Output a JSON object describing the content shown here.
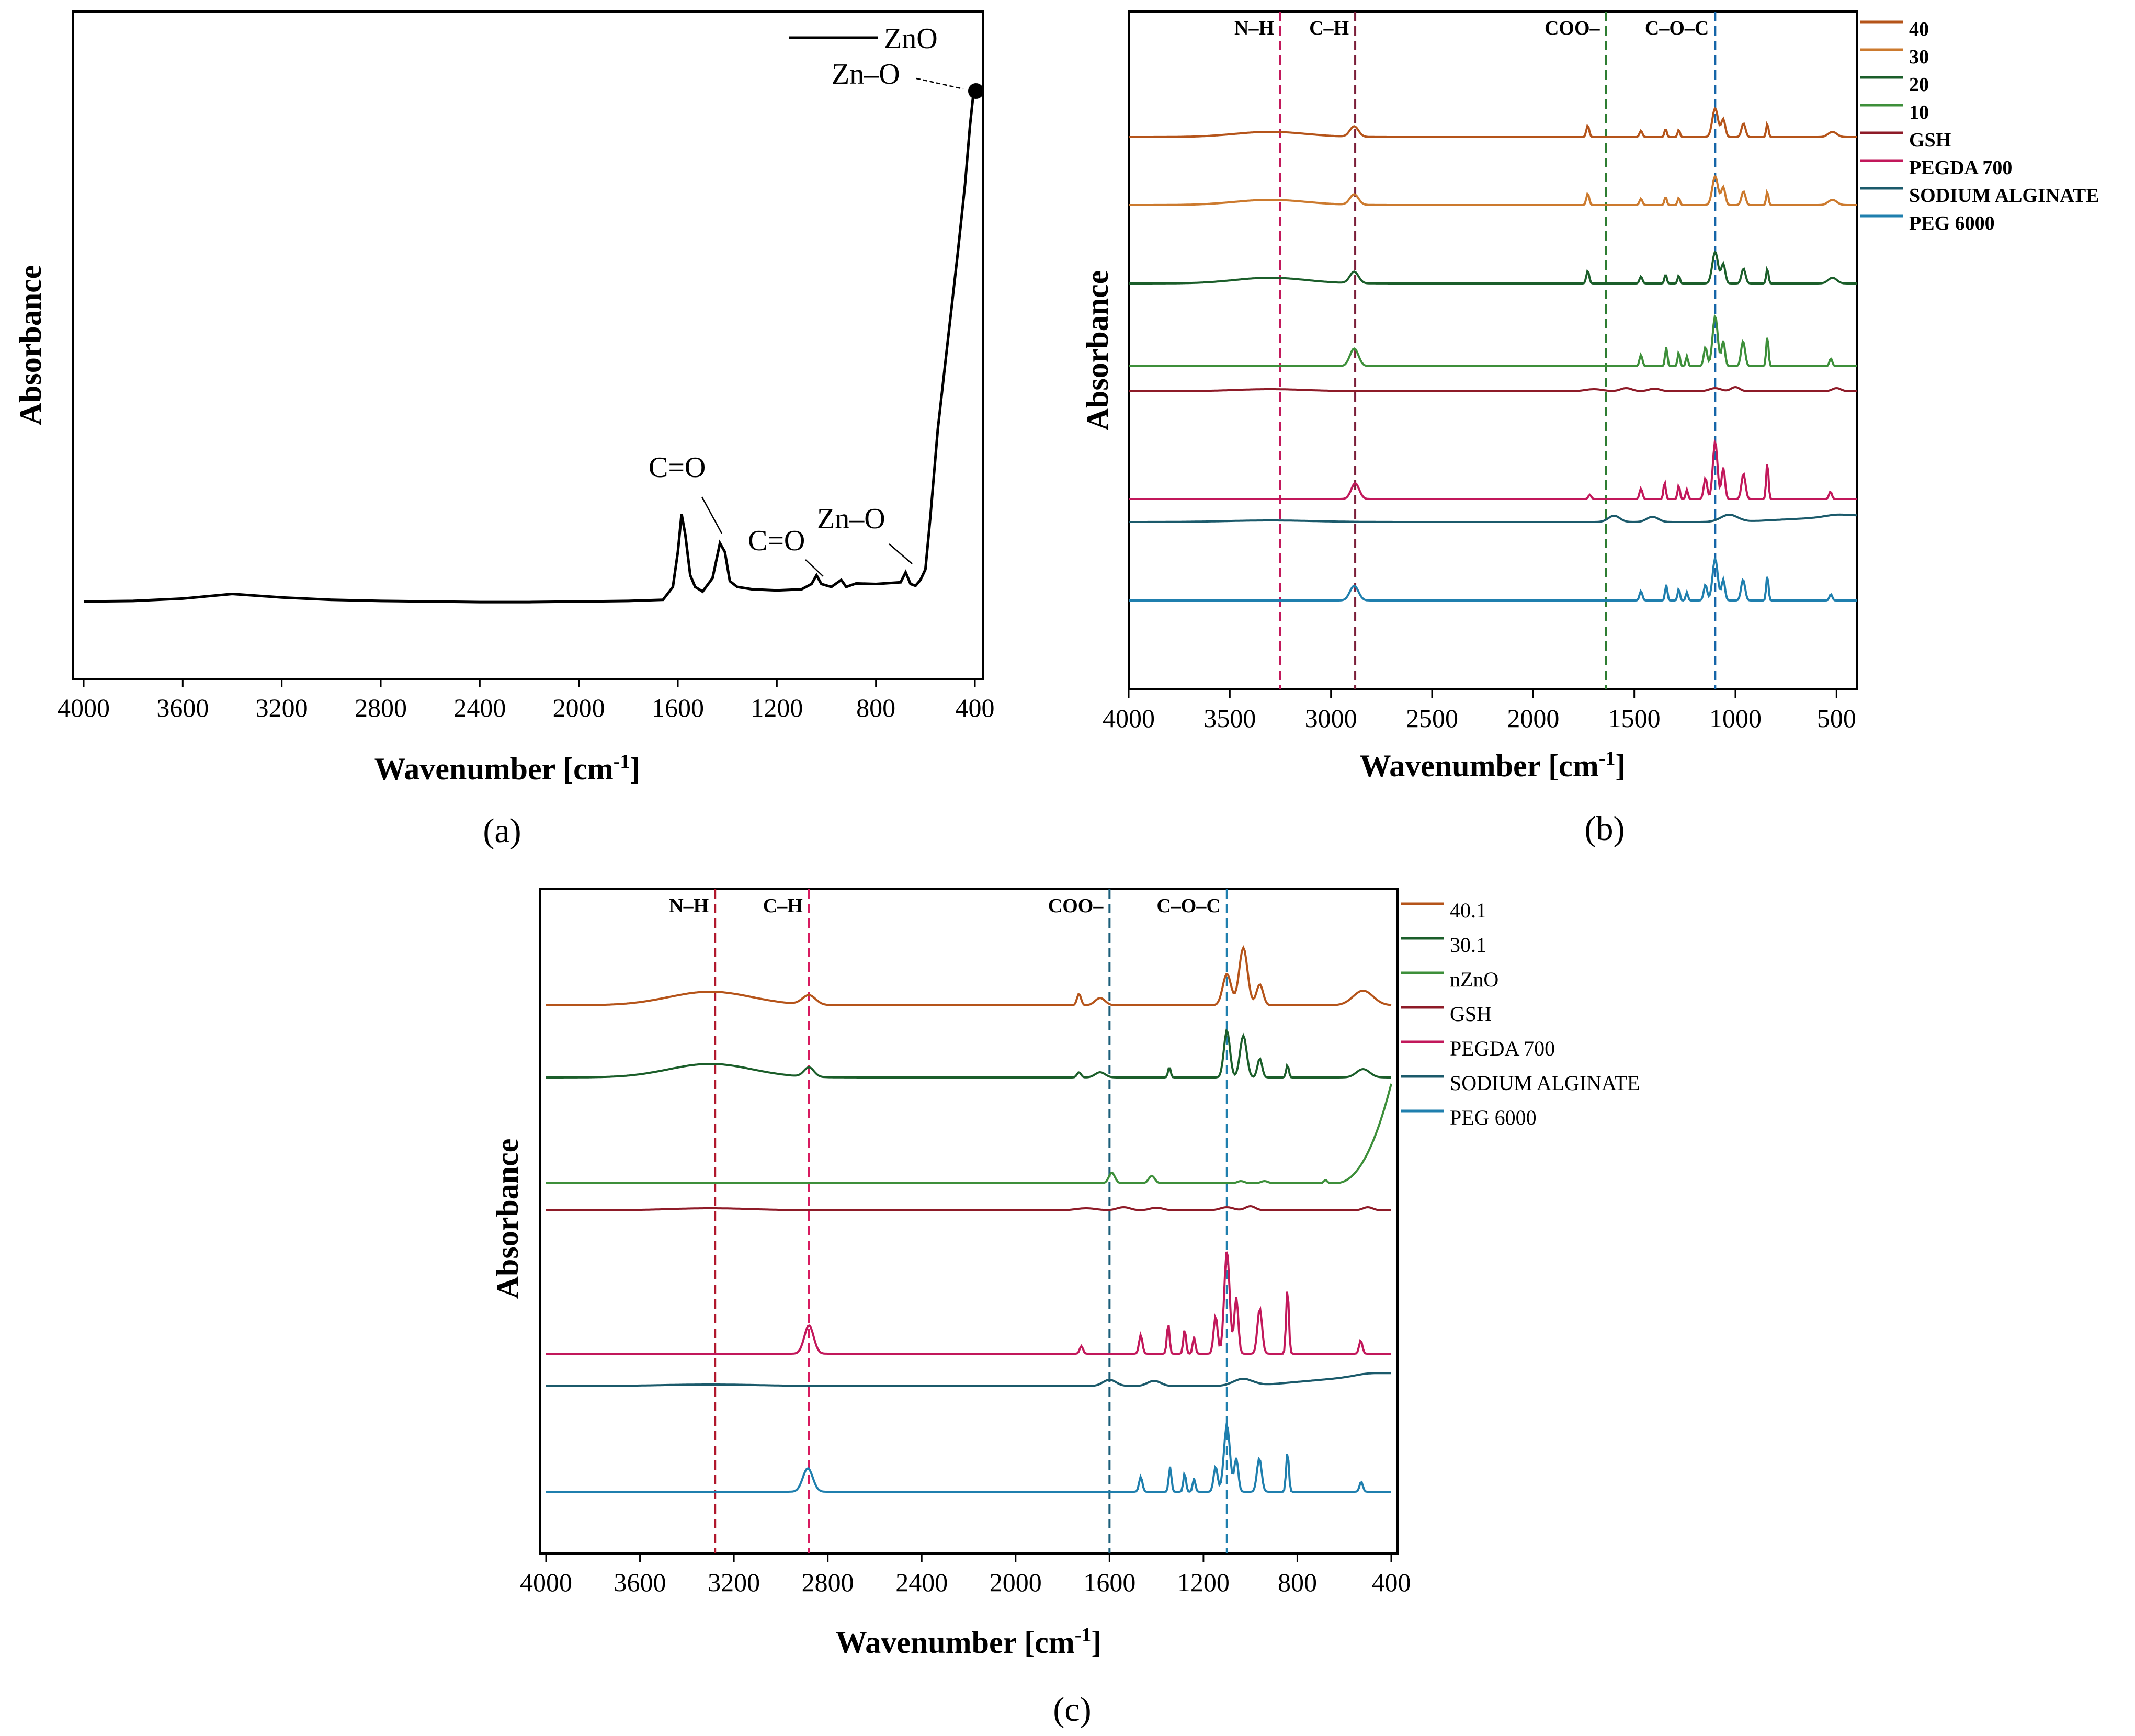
{
  "chart_data": [
    {
      "panel": "a",
      "type": "line",
      "panel_label": "(a)",
      "xlabel": "Wavenumber [cm",
      "xlabel_sup": "-1",
      "xlabel_end": "]",
      "ylabel": "Absorbance",
      "xlim": [
        4000,
        400
      ],
      "ylim": [
        0,
        100
      ],
      "xticks": [
        4000,
        3600,
        3200,
        2800,
        2400,
        2000,
        1600,
        1200,
        800,
        400
      ],
      "legend": [
        {
          "name": "ZnO",
          "color": "#000000"
        }
      ],
      "series": [
        {
          "name": "ZnO",
          "color": "#000000",
          "points": [
            [
              4000,
              10.5
            ],
            [
              3800,
              10.6
            ],
            [
              3600,
              11.0
            ],
            [
              3400,
              11.8
            ],
            [
              3200,
              11.2
            ],
            [
              3000,
              10.8
            ],
            [
              2800,
              10.6
            ],
            [
              2600,
              10.5
            ],
            [
              2400,
              10.4
            ],
            [
              2200,
              10.4
            ],
            [
              2000,
              10.5
            ],
            [
              1800,
              10.6
            ],
            [
              1660,
              10.8
            ],
            [
              1620,
              13.0
            ],
            [
              1600,
              19.0
            ],
            [
              1585,
              25.5
            ],
            [
              1570,
              22.0
            ],
            [
              1550,
              15.0
            ],
            [
              1530,
              13.0
            ],
            [
              1500,
              12.2
            ],
            [
              1460,
              14.5
            ],
            [
              1430,
              20.5
            ],
            [
              1410,
              19.0
            ],
            [
              1390,
              14.0
            ],
            [
              1360,
              13.0
            ],
            [
              1300,
              12.6
            ],
            [
              1200,
              12.4
            ],
            [
              1100,
              12.6
            ],
            [
              1060,
              13.5
            ],
            [
              1040,
              15.0
            ],
            [
              1020,
              13.5
            ],
            [
              980,
              13.0
            ],
            [
              940,
              14.2
            ],
            [
              920,
              13.0
            ],
            [
              880,
              13.6
            ],
            [
              800,
              13.5
            ],
            [
              700,
              13.8
            ],
            [
              680,
              15.5
            ],
            [
              660,
              13.5
            ],
            [
              640,
              13.2
            ],
            [
              620,
              14.2
            ],
            [
              600,
              16.0
            ],
            [
              580,
              25.0
            ],
            [
              550,
              40.0
            ],
            [
              510,
              55.0
            ],
            [
              470,
              70.0
            ],
            [
              440,
              82.0
            ],
            [
              420,
              92.0
            ],
            [
              405,
              98.0
            ]
          ]
        }
      ],
      "annotations": [
        "C=O",
        "C=O",
        "Zn–O",
        "Zn–O"
      ],
      "marker_label": "Zn–O"
    },
    {
      "panel": "b",
      "type": "line",
      "panel_label": "(b)",
      "xlabel": "Wavenumber [cm",
      "xlabel_sup": "-1",
      "xlabel_end": "]",
      "ylabel": "Absorbance",
      "xlim": [
        4000,
        400
      ],
      "xticks": [
        4000,
        3500,
        3000,
        2500,
        2000,
        1500,
        1000,
        500
      ],
      "bands": [
        {
          "label": "N–H",
          "x": 3250,
          "color": "#c2185b"
        },
        {
          "label": "C–H",
          "x": 2880,
          "color": "#7b1f3a"
        },
        {
          "label": "COO–",
          "x": 1640,
          "color": "#2e7d32"
        },
        {
          "label": "C–O–C",
          "x": 1100,
          "color": "#1565a8"
        }
      ],
      "legend": [
        {
          "name": "40",
          "color": "#b5541a"
        },
        {
          "name": "30",
          "color": "#cc7a2e"
        },
        {
          "name": "20",
          "color": "#1b5e2a"
        },
        {
          "name": "10",
          "color": "#3d8f3a"
        },
        {
          "name": "GSH",
          "color": "#8e1b28"
        },
        {
          "name": "PEGDA 700",
          "color": "#c2185b"
        },
        {
          "name": "SODIUM ALGINATE",
          "color": "#1b5a6b"
        },
        {
          "name": "PEG 6000",
          "color": "#1f7fae"
        }
      ]
    },
    {
      "panel": "c",
      "type": "line",
      "panel_label": "(c)",
      "xlabel": "Wavenumber [cm",
      "xlabel_sup": "-1",
      "xlabel_end": "]",
      "ylabel": "Absorbance",
      "xlim": [
        4000,
        400
      ],
      "xticks": [
        4000,
        3600,
        3200,
        2800,
        2400,
        2000,
        1600,
        1200,
        800,
        400
      ],
      "bands": [
        {
          "label": "N–H",
          "x": 3280,
          "color": "#b0172c"
        },
        {
          "label": "C–H",
          "x": 2880,
          "color": "#d81b60"
        },
        {
          "label": "COO–",
          "x": 1600,
          "color": "#1b5e7a"
        },
        {
          "label": "C–O–C",
          "x": 1100,
          "color": "#1f7fae"
        }
      ],
      "legend": [
        {
          "name": "40.1",
          "color": "#b5541a"
        },
        {
          "name": "30.1",
          "color": "#1b5e2a"
        },
        {
          "name": "nZnO",
          "color": "#3d8f3a"
        },
        {
          "name": "GSH",
          "color": "#8e1b28"
        },
        {
          "name": "PEGDA 700",
          "color": "#c2185b"
        },
        {
          "name": "SODIUM ALGINATE",
          "color": "#1b5a6b"
        },
        {
          "name": "PEG 6000",
          "color": "#1f7fae"
        }
      ]
    }
  ]
}
